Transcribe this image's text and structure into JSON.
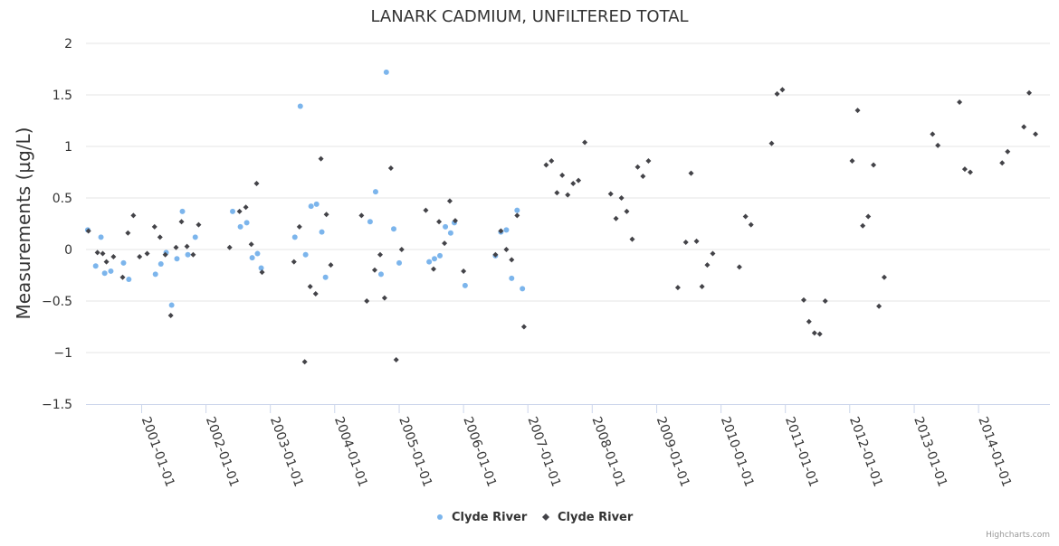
{
  "chart_data": {
    "type": "scatter",
    "title": "LANARK CADMIUM, UNFILTERED TOTAL",
    "xlabel": "",
    "ylabel": "Measurements (µg/L)",
    "ylim": [
      -1.5,
      2
    ],
    "xlim": [
      "2000-02-20",
      "2015-02-10"
    ],
    "yticks": [
      2,
      1.5,
      1,
      0.5,
      0,
      -0.5,
      -1,
      -1.5
    ],
    "ytick_labels": [
      "2",
      "1.5",
      "1",
      "0.5",
      "0",
      "−0.5",
      "−1",
      "−1.5"
    ],
    "xticks": [
      "2001-01-01",
      "2002-01-01",
      "2003-01-01",
      "2004-01-01",
      "2005-01-01",
      "2006-01-01",
      "2007-01-01",
      "2008-01-01",
      "2009-01-01",
      "2010-01-01",
      "2011-01-01",
      "2012-01-01",
      "2013-01-01",
      "2014-01-01"
    ],
    "grid": true,
    "legend_position": "bottom-center",
    "series": [
      {
        "name": "Clyde River",
        "marker": "circle",
        "color": "#7cb5ec",
        "points": [
          [
            "2000-03-01",
            0.19
          ],
          [
            "2000-04-15",
            -0.16
          ],
          [
            "2000-05-15",
            0.12
          ],
          [
            "2000-06-05",
            -0.23
          ],
          [
            "2000-07-10",
            -0.21
          ],
          [
            "2000-09-20",
            -0.13
          ],
          [
            "2000-10-20",
            -0.29
          ],
          [
            "2001-03-20",
            -0.24
          ],
          [
            "2001-04-20",
            -0.14
          ],
          [
            "2001-05-20",
            -0.03
          ],
          [
            "2001-06-20",
            -0.54
          ],
          [
            "2001-07-20",
            -0.09
          ],
          [
            "2001-08-20",
            0.37
          ],
          [
            "2001-09-20",
            -0.05
          ],
          [
            "2001-11-01",
            0.12
          ],
          [
            "2002-06-01",
            0.37
          ],
          [
            "2002-07-15",
            0.22
          ],
          [
            "2002-08-20",
            0.26
          ],
          [
            "2002-09-20",
            -0.08
          ],
          [
            "2002-10-20",
            -0.04
          ],
          [
            "2002-11-10",
            -0.18
          ],
          [
            "2003-05-20",
            0.12
          ],
          [
            "2003-06-20",
            1.39
          ],
          [
            "2003-07-20",
            -0.05
          ],
          [
            "2003-08-20",
            0.42
          ],
          [
            "2003-09-20",
            0.44
          ],
          [
            "2003-10-20",
            0.17
          ],
          [
            "2003-11-10",
            -0.27
          ],
          [
            "2004-07-20",
            0.27
          ],
          [
            "2004-08-20",
            0.56
          ],
          [
            "2004-09-20",
            -0.24
          ],
          [
            "2004-10-20",
            1.72
          ],
          [
            "2004-12-01",
            0.2
          ],
          [
            "2005-01-01",
            -0.13
          ],
          [
            "2005-06-20",
            -0.12
          ],
          [
            "2005-07-20",
            -0.09
          ],
          [
            "2005-08-20",
            -0.06
          ],
          [
            "2005-09-20",
            0.22
          ],
          [
            "2005-10-20",
            0.16
          ],
          [
            "2005-11-10",
            0.26
          ],
          [
            "2006-01-10",
            -0.35
          ],
          [
            "2006-07-01",
            -0.06
          ],
          [
            "2006-08-01",
            0.17
          ],
          [
            "2006-09-01",
            0.19
          ],
          [
            "2006-10-01",
            -0.28
          ],
          [
            "2006-11-01",
            0.38
          ],
          [
            "2006-12-01",
            -0.38
          ]
        ]
      },
      {
        "name": "Clyde River",
        "marker": "diamond",
        "color": "#434348",
        "points": [
          [
            "2000-03-05",
            0.18
          ],
          [
            "2000-04-25",
            -0.03
          ],
          [
            "2000-05-25",
            -0.04
          ],
          [
            "2000-06-15",
            -0.12
          ],
          [
            "2000-07-25",
            -0.07
          ],
          [
            "2000-09-15",
            -0.27
          ],
          [
            "2000-10-15",
            0.16
          ],
          [
            "2000-11-15",
            0.33
          ],
          [
            "2000-12-20",
            -0.07
          ],
          [
            "2001-02-01",
            -0.04
          ],
          [
            "2001-03-15",
            0.22
          ],
          [
            "2001-04-15",
            0.12
          ],
          [
            "2001-05-15",
            -0.05
          ],
          [
            "2001-06-15",
            -0.64
          ],
          [
            "2001-07-15",
            0.02
          ],
          [
            "2001-08-15",
            0.27
          ],
          [
            "2001-09-15",
            0.03
          ],
          [
            "2001-10-20",
            -0.05
          ],
          [
            "2001-11-20",
            0.24
          ],
          [
            "2002-05-15",
            0.02
          ],
          [
            "2002-07-10",
            0.37
          ],
          [
            "2002-08-15",
            0.41
          ],
          [
            "2002-09-15",
            0.05
          ],
          [
            "2002-10-15",
            0.64
          ],
          [
            "2002-11-15",
            -0.22
          ],
          [
            "2003-05-15",
            -0.12
          ],
          [
            "2003-06-15",
            0.22
          ],
          [
            "2003-07-15",
            -1.09
          ],
          [
            "2003-08-15",
            -0.36
          ],
          [
            "2003-09-15",
            -0.43
          ],
          [
            "2003-10-15",
            0.88
          ],
          [
            "2003-11-15",
            0.34
          ],
          [
            "2003-12-10",
            -0.15
          ],
          [
            "2004-06-01",
            0.33
          ],
          [
            "2004-07-01",
            -0.5
          ],
          [
            "2004-08-15",
            -0.2
          ],
          [
            "2004-09-15",
            -0.05
          ],
          [
            "2004-10-10",
            -0.47
          ],
          [
            "2004-11-15",
            0.79
          ],
          [
            "2004-12-15",
            -1.07
          ],
          [
            "2005-01-15",
            0.0
          ],
          [
            "2005-06-01",
            0.38
          ],
          [
            "2005-07-15",
            -0.19
          ],
          [
            "2005-08-15",
            0.27
          ],
          [
            "2005-09-15",
            0.06
          ],
          [
            "2005-10-15",
            0.47
          ],
          [
            "2005-11-15",
            0.28
          ],
          [
            "2006-01-01",
            -0.21
          ],
          [
            "2006-07-01",
            -0.05
          ],
          [
            "2006-08-01",
            0.18
          ],
          [
            "2006-09-01",
            0.0
          ],
          [
            "2006-10-01",
            -0.1
          ],
          [
            "2006-11-01",
            0.33
          ],
          [
            "2006-12-10",
            -0.75
          ],
          [
            "2007-04-15",
            0.82
          ],
          [
            "2007-05-15",
            0.86
          ],
          [
            "2007-06-15",
            0.55
          ],
          [
            "2007-07-15",
            0.72
          ],
          [
            "2007-08-15",
            0.53
          ],
          [
            "2007-09-15",
            0.64
          ],
          [
            "2007-10-15",
            0.67
          ],
          [
            "2007-11-20",
            1.04
          ],
          [
            "2008-04-15",
            0.54
          ],
          [
            "2008-05-15",
            0.3
          ],
          [
            "2008-06-15",
            0.5
          ],
          [
            "2008-07-15",
            0.37
          ],
          [
            "2008-08-15",
            0.1
          ],
          [
            "2008-09-15",
            0.8
          ],
          [
            "2008-10-15",
            0.71
          ],
          [
            "2008-11-15",
            0.86
          ],
          [
            "2009-05-01",
            -0.37
          ],
          [
            "2009-06-15",
            0.07
          ],
          [
            "2009-07-15",
            0.74
          ],
          [
            "2009-08-15",
            0.08
          ],
          [
            "2009-09-15",
            -0.36
          ],
          [
            "2009-10-15",
            -0.15
          ],
          [
            "2009-11-15",
            -0.04
          ],
          [
            "2010-04-15",
            -0.17
          ],
          [
            "2010-05-20",
            0.32
          ],
          [
            "2010-06-20",
            0.24
          ],
          [
            "2010-10-15",
            1.03
          ],
          [
            "2010-11-15",
            1.51
          ],
          [
            "2010-12-15",
            1.55
          ],
          [
            "2011-04-15",
            -0.49
          ],
          [
            "2011-05-15",
            -0.7
          ],
          [
            "2011-06-15",
            -0.81
          ],
          [
            "2011-07-15",
            -0.82
          ],
          [
            "2011-08-15",
            -0.5
          ],
          [
            "2012-01-15",
            0.86
          ],
          [
            "2012-02-15",
            1.35
          ],
          [
            "2012-03-15",
            0.23
          ],
          [
            "2012-04-15",
            0.32
          ],
          [
            "2012-05-15",
            0.82
          ],
          [
            "2012-06-15",
            -0.55
          ],
          [
            "2012-07-15",
            -0.27
          ],
          [
            "2013-04-15",
            1.12
          ],
          [
            "2013-05-15",
            1.01
          ],
          [
            "2013-09-15",
            1.43
          ],
          [
            "2013-10-15",
            0.78
          ],
          [
            "2013-11-15",
            0.75
          ],
          [
            "2014-05-15",
            0.84
          ],
          [
            "2014-06-15",
            0.95
          ],
          [
            "2014-09-15",
            1.19
          ],
          [
            "2014-10-15",
            1.52
          ],
          [
            "2014-11-20",
            1.12
          ]
        ]
      }
    ]
  },
  "credits": "Highcharts.com"
}
